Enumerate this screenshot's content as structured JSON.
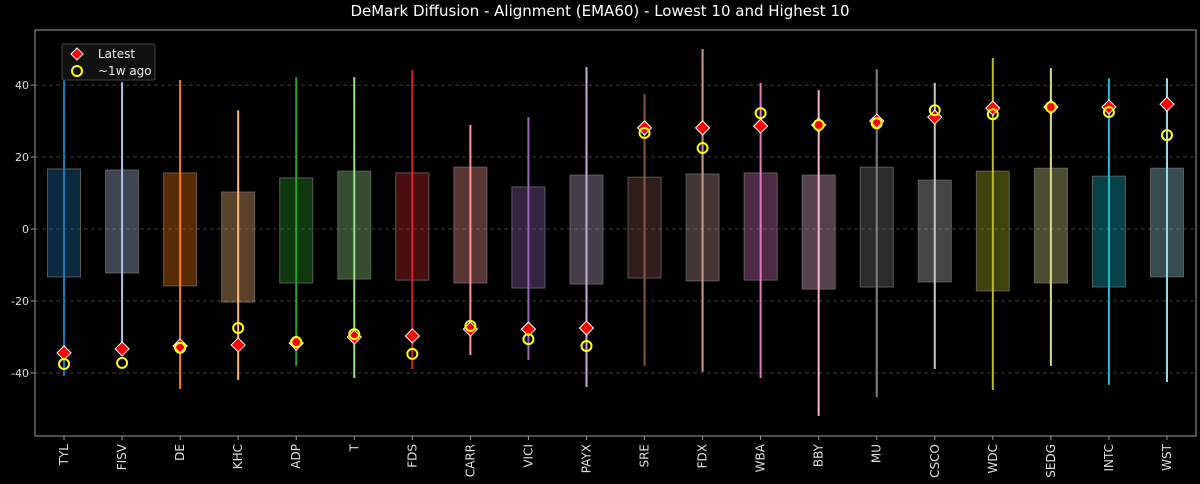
{
  "chart_data": {
    "type": "range-box",
    "title": "DeMark Diffusion - Alignment (EMA60) - Lowest 10 and Highest 10",
    "xlabel": "",
    "ylabel": "",
    "ylim": [
      -57.5,
      55.3
    ],
    "yticks": [
      -40,
      -20,
      0,
      20,
      40
    ],
    "grid": true,
    "legend": {
      "placement": "top-left",
      "entries": [
        "Latest",
        "~1w ago"
      ]
    },
    "marker_colors": {
      "latest": "#ff0000",
      "latest_edge": "#ffffff",
      "week_ago": "#ffff00"
    },
    "categories": [
      "TYL",
      "FISV",
      "DE",
      "KHC",
      "ADP",
      "T",
      "FDS",
      "CARR",
      "VICI",
      "PAYX",
      "SRE",
      "FDX",
      "WBA",
      "BBY",
      "MU",
      "CSCO",
      "WDC",
      "SEDG",
      "INTC",
      "WST"
    ],
    "colors": [
      "#1f77b4",
      "#aec7e8",
      "#ff7f0e",
      "#ffbb78",
      "#2ca02c",
      "#98df8a",
      "#d62728",
      "#ff9896",
      "#9467bd",
      "#c5b0d5",
      "#8c564b",
      "#c49c94",
      "#e377c2",
      "#f7b6d2",
      "#7f7f7f",
      "#c7c7c7",
      "#bcbd22",
      "#dbdb8d",
      "#17becf",
      "#9edae5"
    ],
    "box_low": [
      -13.3,
      -12.2,
      -15.8,
      -20.3,
      -15.0,
      -13.9,
      -14.2,
      -15.0,
      -16.4,
      -15.3,
      -13.6,
      -14.4,
      -14.2,
      -16.7,
      -16.1,
      -14.7,
      -17.2,
      -15.0,
      -16.1,
      -13.3
    ],
    "box_high": [
      16.7,
      16.4,
      15.6,
      10.3,
      14.2,
      16.1,
      15.6,
      17.2,
      11.7,
      15.0,
      14.4,
      15.3,
      15.6,
      15.0,
      17.2,
      13.6,
      16.1,
      16.9,
      14.7,
      16.9
    ],
    "range_min": [
      -40.8,
      -33.3,
      -44.4,
      -41.9,
      -38.0,
      -41.4,
      -38.9,
      -35.0,
      -36.4,
      -43.9,
      -38.0,
      -39.7,
      -41.4,
      -51.9,
      -46.7,
      -38.9,
      -44.7,
      -38.0,
      -43.3,
      -42.5
    ],
    "range_max": [
      44.7,
      40.8,
      41.4,
      33.0,
      42.2,
      42.2,
      44.2,
      28.9,
      31.1,
      45.0,
      37.5,
      50.0,
      40.6,
      38.6,
      44.4,
      40.6,
      47.5,
      44.7,
      41.9,
      41.9
    ],
    "series": [
      {
        "name": "Latest",
        "values": [
          -34.4,
          -33.3,
          -32.5,
          -32.2,
          -31.7,
          -30.0,
          -29.7,
          -27.8,
          -27.8,
          -27.5,
          28.1,
          28.1,
          28.6,
          28.9,
          30.0,
          31.1,
          33.6,
          33.9,
          33.9,
          34.7
        ]
      },
      {
        "name": "~1w ago",
        "values": [
          -37.5,
          -37.2,
          -33.0,
          -27.5,
          -31.4,
          -29.2,
          -34.7,
          -26.9,
          -30.6,
          -32.5,
          26.7,
          22.5,
          32.2,
          28.9,
          29.4,
          33.0,
          31.9,
          33.9,
          32.5,
          26.1
        ]
      }
    ]
  }
}
